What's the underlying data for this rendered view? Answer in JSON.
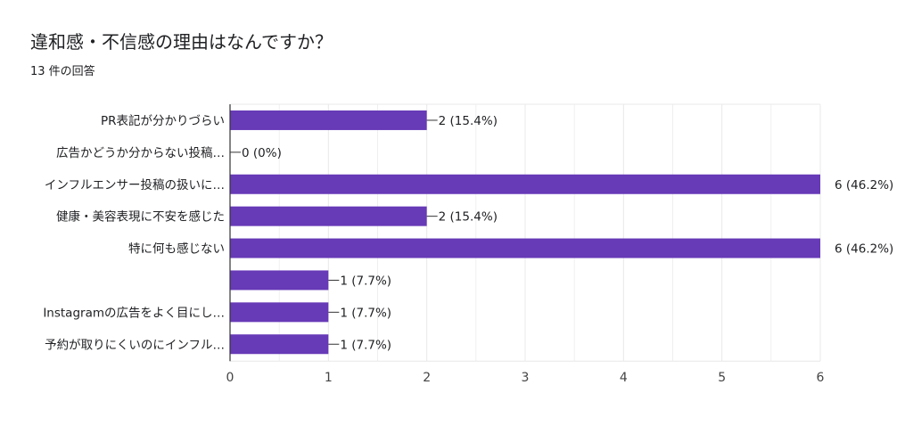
{
  "header": {
    "title": "違和感・不信感の理由はなんですか？",
    "response_count": "13 件の回答"
  },
  "colors": {
    "bar": "#673ab7",
    "grid": "#e8e8e8",
    "axis": "#333333",
    "text": "#202124"
  },
  "chart_data": {
    "type": "bar",
    "orientation": "horizontal",
    "categories": [
      "PR表記が分かりづらい",
      "広告かどうか分からない投稿…",
      "インフルエンサー投稿の扱いに…",
      "健康・美容表現に不安を感じた",
      "特に何も感じない",
      "",
      "Instagramの広告をよく目にし…",
      "予約が取りにくいのにインフル…"
    ],
    "values": [
      2,
      0,
      6,
      2,
      6,
      1,
      1,
      1
    ],
    "data_labels": [
      "2 (15.4%)",
      "0 (0%)",
      "6 (46.2%)",
      "2 (15.4%)",
      "6 (46.2%)",
      "1 (7.7%)",
      "1 (7.7%)",
      "1 (7.7%)"
    ],
    "xlim": [
      0,
      6
    ],
    "x_ticks": [
      "0",
      "1",
      "2",
      "3",
      "4",
      "5",
      "6"
    ],
    "grid": true,
    "legend": "none"
  }
}
